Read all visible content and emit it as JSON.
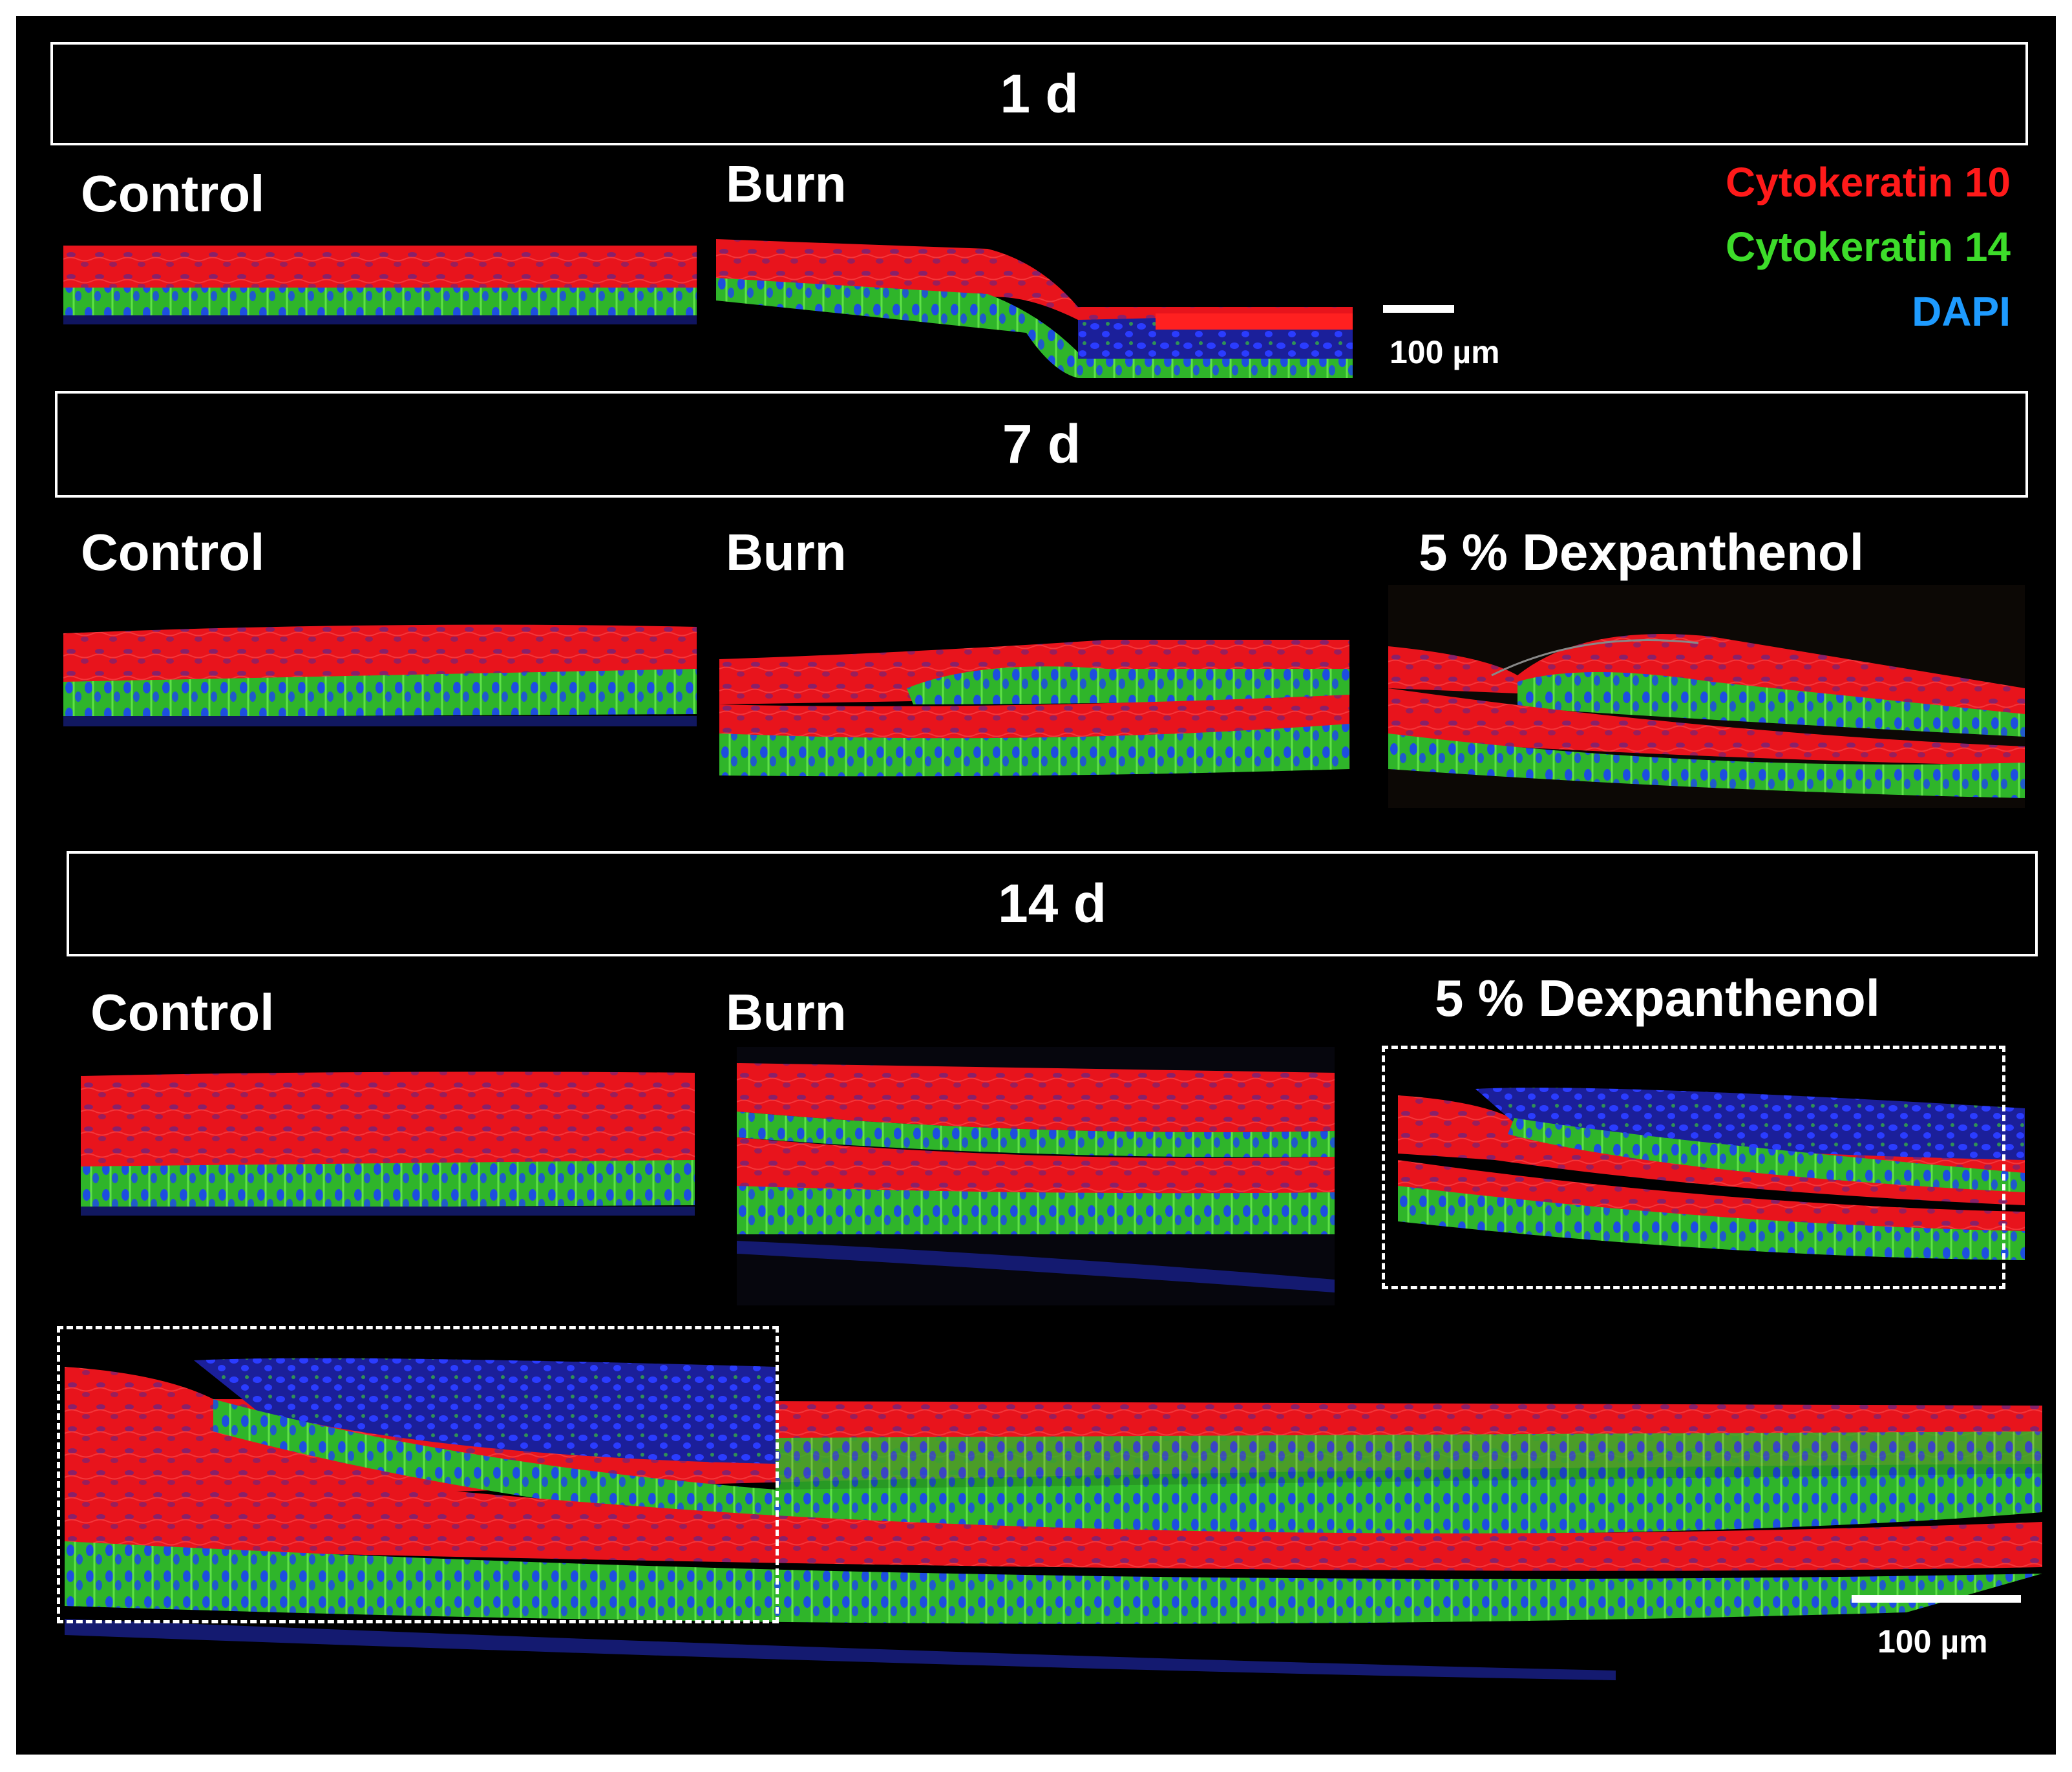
{
  "colors": {
    "ck10": "#ff1a1a",
    "ck14": "#3ddc2a",
    "dapi": "#1e9bff",
    "background": "#000000",
    "frame": "#ffffff"
  },
  "legend": {
    "cytokeratin10": "Cytokeratin 10",
    "cytokeratin14": "Cytokeratin 14",
    "dapi": "DAPI"
  },
  "day1": {
    "title": "1 d",
    "control_label": "Control",
    "burn_label": "Burn",
    "scale_label": "100 µm"
  },
  "day7": {
    "title": "7 d",
    "control_label": "Control",
    "burn_label": "Burn",
    "dexpanthenol_label": "5 % Dexpanthenol"
  },
  "day14": {
    "title": "14 d",
    "control_label": "Control",
    "burn_label": "Burn",
    "dexpanthenol_label": "5 % Dexpanthenol"
  },
  "zoom": {
    "scale_label": "100 µm"
  }
}
